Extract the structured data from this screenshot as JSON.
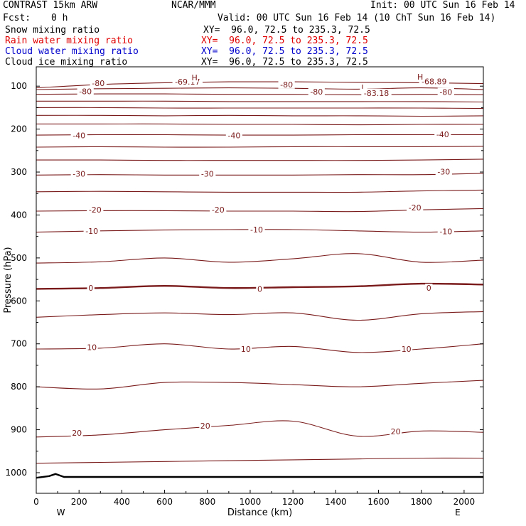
{
  "header": {
    "title": "CONTRAST 15km ARW",
    "center": "NCAR/MMM",
    "init": "Init: 00 UTC Sun 16 Feb 14",
    "fcst_label": "Fcst:",
    "fcst_value": "0 h",
    "valid": "Valid: 00 UTC Sun 16 Feb 14 (10 ChT Sun 16 Feb 14)"
  },
  "fields": [
    {
      "name": "Snow mixing ratio",
      "xy": "XY=  96.0, 72.5 to 235.3, 72.5",
      "color": "#000000"
    },
    {
      "name": "Rain water mixing ratio",
      "xy": "XY=  96.0, 72.5 to 235.3, 72.5",
      "color": "#e00000"
    },
    {
      "name": "Cloud water mixing ratio",
      "xy": "XY=  96.0, 72.5 to 235.3, 72.5",
      "color": "#0000cc"
    },
    {
      "name": "Cloud ice mixing ratio",
      "xy": "XY=  96.0, 72.5 to 235.3, 72.5",
      "color": "#000000"
    }
  ],
  "chart_data": {
    "type": "line",
    "xlabel": "Distance (km)",
    "ylabel": "Pressure (hPa)",
    "xlim": [
      0,
      2090
    ],
    "ylim": [
      1048,
      55
    ],
    "xticks": [
      0,
      200,
      400,
      600,
      800,
      1000,
      1200,
      1400,
      1600,
      1800,
      2000
    ],
    "yticks": [
      100,
      200,
      300,
      400,
      500,
      600,
      700,
      800,
      900,
      1000
    ],
    "direction_labels": {
      "left": "W",
      "right": "E"
    },
    "contour_color": "#7a1a1a",
    "terrain": {
      "x": [
        0,
        60,
        90,
        130,
        200,
        1500,
        2090
      ],
      "p": [
        1012,
        1008,
        1003,
        1010,
        1010,
        1010,
        1010
      ]
    },
    "contours": [
      {
        "p": [
          104,
          96,
          92,
          90,
          90,
          91,
          92,
          94
        ]
      },
      {
        "p": [
          108,
          106,
          105,
          104,
          105,
          107,
          104,
          108
        ]
      },
      {
        "p": [
          119,
          118,
          118,
          119,
          119,
          120,
          119,
          120
        ]
      },
      {
        "p": [
          135,
          135,
          135,
          136,
          136,
          136,
          136,
          137
        ]
      },
      {
        "p": [
          150,
          150,
          151,
          151,
          151,
          151,
          151,
          152
        ]
      },
      {
        "p": [
          168,
          168,
          169,
          168,
          169,
          169,
          170,
          169
        ]
      },
      {
        "p": [
          188,
          188,
          188,
          189,
          189,
          190,
          189,
          189
        ]
      },
      {
        "p": [
          214,
          213,
          213,
          214,
          214,
          213,
          213,
          213
        ]
      },
      {
        "p": [
          242,
          241,
          242,
          242,
          241,
          241,
          241,
          240
        ]
      },
      {
        "p": [
          272,
          272,
          273,
          273,
          273,
          273,
          272,
          270
        ]
      },
      {
        "p": [
          307,
          306,
          307,
          307,
          307,
          306,
          306,
          303
        ]
      },
      {
        "p": [
          346,
          345,
          346,
          347,
          347,
          347,
          344,
          342
        ]
      },
      {
        "p": [
          391,
          390,
          390,
          391,
          391,
          392,
          388,
          385
        ]
      },
      {
        "p": [
          440,
          437,
          435,
          434,
          434,
          437,
          440,
          437
        ]
      },
      {
        "p": [
          512,
          509,
          500,
          510,
          502,
          490,
          510,
          505
        ]
      },
      {
        "p": [
          572,
          570,
          565,
          570,
          568,
          566,
          560,
          562
        ]
      },
      {
        "p": [
          638,
          632,
          628,
          632,
          628,
          645,
          630,
          625
        ]
      },
      {
        "p": [
          712,
          710,
          700,
          712,
          706,
          720,
          712,
          700
        ]
      },
      {
        "p": [
          800,
          805,
          790,
          790,
          795,
          800,
          792,
          785
        ]
      },
      {
        "p": [
          917,
          912,
          900,
          890,
          880,
          915,
          903,
          906
        ]
      },
      {
        "p": [
          978,
          976,
          974,
          972,
          970,
          968,
          966,
          966
        ]
      }
    ],
    "contour_x": [
      0,
      300,
      600,
      900,
      1200,
      1500,
      1800,
      2090
    ],
    "bold_contour_index": 15,
    "labels": [
      {
        "text": "-80",
        "x": 290,
        "p": 93
      },
      {
        "text": "-69.17",
        "x": 707,
        "p": 90
      },
      {
        "text": "-80",
        "x": 1170,
        "p": 96
      },
      {
        "text": "-68.89",
        "x": 1860,
        "p": 89
      },
      {
        "text": "H",
        "x": 740,
        "p": 80
      },
      {
        "text": "H",
        "x": 1795,
        "p": 78
      },
      {
        "text": "-80",
        "x": 230,
        "p": 112
      },
      {
        "text": "-80",
        "x": 1310,
        "p": 113
      },
      {
        "text": "L",
        "x": 1530,
        "p": 103
      },
      {
        "text": "-83.18",
        "x": 1590,
        "p": 116
      },
      {
        "text": "-80",
        "x": 1915,
        "p": 114
      },
      {
        "text": "-40",
        "x": 200,
        "p": 215
      },
      {
        "text": "-40",
        "x": 925,
        "p": 215
      },
      {
        "text": "-40",
        "x": 1900,
        "p": 212
      },
      {
        "text": "-30",
        "x": 200,
        "p": 304
      },
      {
        "text": "-30",
        "x": 800,
        "p": 304
      },
      {
        "text": "-30",
        "x": 1905,
        "p": 299
      },
      {
        "text": "-20",
        "x": 275,
        "p": 388
      },
      {
        "text": "-20",
        "x": 850,
        "p": 388
      },
      {
        "text": "-20",
        "x": 1770,
        "p": 383
      },
      {
        "text": "-10",
        "x": 260,
        "p": 437
      },
      {
        "text": "-10",
        "x": 1030,
        "p": 434
      },
      {
        "text": "-10",
        "x": 1915,
        "p": 438
      },
      {
        "text": "0",
        "x": 255,
        "p": 570
      },
      {
        "text": "0",
        "x": 1045,
        "p": 572
      },
      {
        "text": "0",
        "x": 1835,
        "p": 570
      },
      {
        "text": "10",
        "x": 260,
        "p": 708
      },
      {
        "text": "10",
        "x": 980,
        "p": 712
      },
      {
        "text": "10",
        "x": 1730,
        "p": 712
      },
      {
        "text": "20",
        "x": 190,
        "p": 907
      },
      {
        "text": "20",
        "x": 790,
        "p": 891
      },
      {
        "text": "20",
        "x": 1680,
        "p": 904
      }
    ]
  }
}
